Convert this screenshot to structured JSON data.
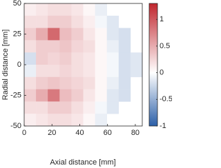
{
  "chart_data": {
    "type": "heatmap",
    "xlabel": "Axial distance [mm]",
    "ylabel": "Radial distance [mm]",
    "xlim": [
      0,
      85
    ],
    "ylim": [
      -50,
      50
    ],
    "xticks": [
      0,
      20,
      40,
      60,
      80
    ],
    "yticks": [
      -50,
      -25,
      0,
      25,
      50
    ],
    "xbins": [
      0,
      8.5,
      17,
      25.5,
      34,
      42.5,
      51,
      59.5,
      68,
      76.5,
      85
    ],
    "ybins": [
      50,
      40,
      30,
      20,
      10,
      0,
      -10,
      -20,
      -30,
      -40,
      -50
    ],
    "z": [
      [
        0.1,
        0.15,
        0.2,
        0.2,
        0.15,
        0.05,
        -0.1,
        null,
        null,
        null
      ],
      [
        0.2,
        0.2,
        0.3,
        0.3,
        0.2,
        0.1,
        -0.05,
        -0.15,
        null,
        null
      ],
      [
        0.3,
        0.5,
        0.9,
        0.4,
        0.3,
        0.15,
        0.05,
        -0.15,
        -0.2,
        null
      ],
      [
        0.2,
        0.3,
        0.3,
        0.35,
        0.25,
        0.2,
        0.05,
        -0.1,
        -0.2,
        null
      ],
      [
        -0.2,
        0.3,
        0.25,
        0.3,
        0.2,
        0.15,
        0.05,
        -0.05,
        -0.2,
        -0.15
      ],
      [
        -0.1,
        0.2,
        0.2,
        0.25,
        0.2,
        0.15,
        0.05,
        -0.05,
        -0.2,
        -0.15
      ],
      [
        0.2,
        0.3,
        0.35,
        0.3,
        0.25,
        0.2,
        0.05,
        -0.1,
        -0.2,
        null
      ],
      [
        0.3,
        0.5,
        0.8,
        0.4,
        0.3,
        0.15,
        0.05,
        -0.15,
        -0.2,
        null
      ],
      [
        0.2,
        0.2,
        0.3,
        0.3,
        0.2,
        0.1,
        -0.05,
        -0.15,
        null,
        null
      ],
      [
        0.1,
        0.15,
        0.2,
        0.2,
        0.15,
        0.05,
        -0.1,
        null,
        null,
        null
      ]
    ],
    "clim": [
      -1,
      1.3
    ],
    "colorbar_ticks": [
      -1,
      -0.5,
      0,
      0.5,
      1
    ],
    "colormap": [
      "#2b5fa8",
      "#ffffff",
      "#c0262e"
    ]
  }
}
